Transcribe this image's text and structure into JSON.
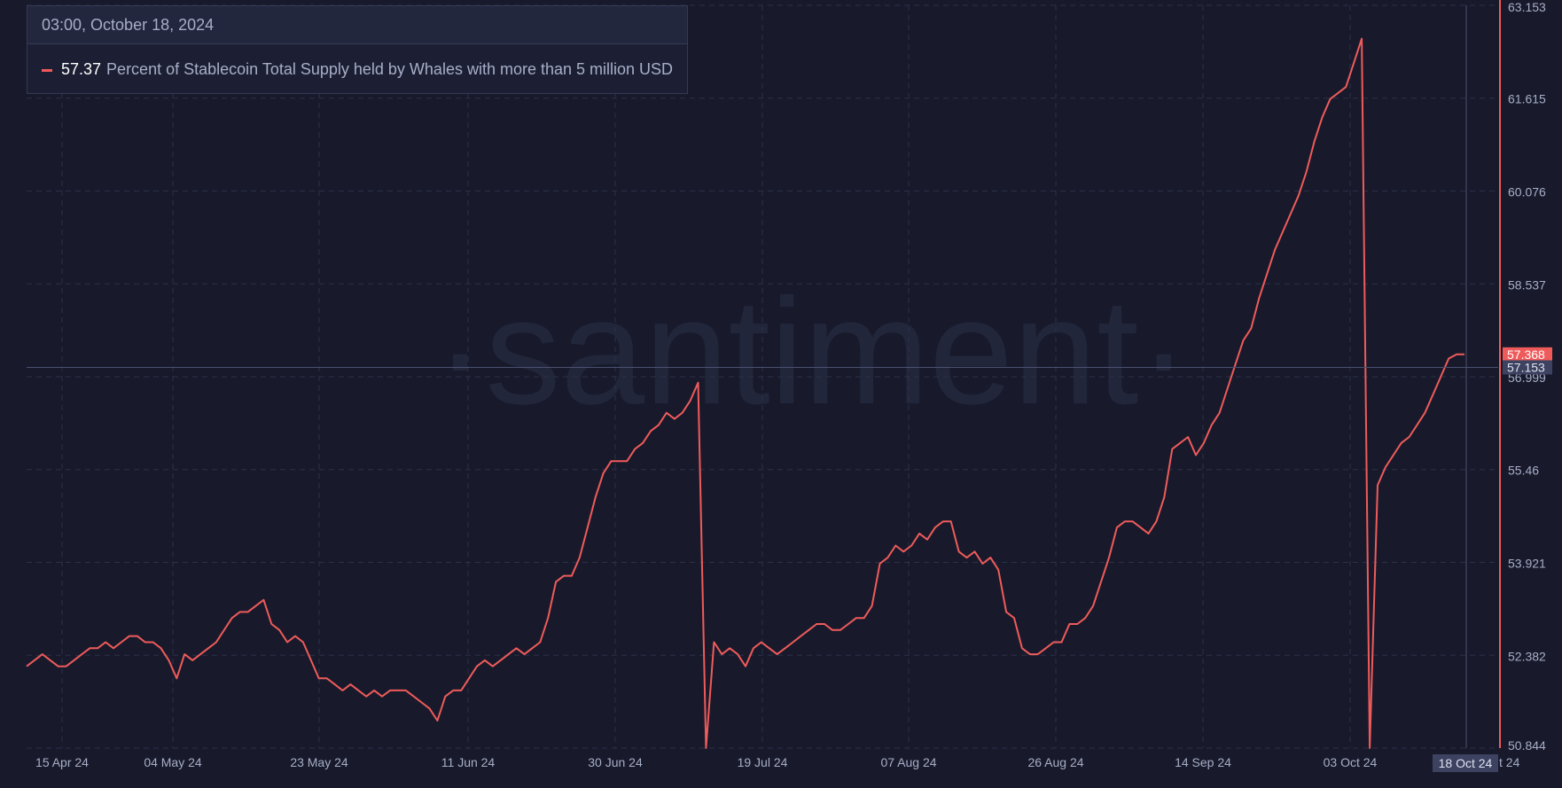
{
  "watermark": "·santiment·",
  "tooltip": {
    "date": "03:00, October 18, 2024",
    "value": "57.37",
    "label": "Percent of Stablecoin Total Supply held by Whales with more than 5 million USD"
  },
  "colors": {
    "background": "#181a2b",
    "line": "#ef5b5b",
    "grid": "#2b3048",
    "axis_text": "#a7aec8"
  },
  "y_axis": {
    "ticks": [
      "63.153",
      "61.615",
      "60.076",
      "58.537",
      "56.999",
      "55.46",
      "53.921",
      "52.382",
      "50.844"
    ],
    "current_value_badge": "57.368",
    "crosshair_value_badge": "57.153"
  },
  "x_axis": {
    "ticks": [
      "15 Apr 24",
      "04 May 24",
      "23 May 24",
      "11 Jun 24",
      "30 Jun 24",
      "19 Jul 24",
      "07 Aug 24",
      "26 Aug 24",
      "14 Sep 24",
      "03 Oct 24"
    ],
    "crosshair_date_badge": "18 Oct 24",
    "trailing_label": "t 24"
  },
  "chart_data": {
    "type": "line",
    "title": "",
    "xlabel": "",
    "ylabel": "",
    "ylim": [
      50.844,
      63.153
    ],
    "grid": true,
    "series": [
      {
        "name": "Percent of Stablecoin Total Supply held by Whales with more than 5 million USD",
        "values": [
          52.2,
          52.3,
          52.4,
          52.3,
          52.2,
          52.2,
          52.3,
          52.4,
          52.5,
          52.5,
          52.6,
          52.5,
          52.6,
          52.7,
          52.7,
          52.6,
          52.6,
          52.5,
          52.3,
          52.0,
          52.4,
          52.3,
          52.4,
          52.5,
          52.6,
          52.8,
          53.0,
          53.1,
          53.1,
          53.2,
          53.3,
          52.9,
          52.8,
          52.6,
          52.7,
          52.6,
          52.3,
          52.0,
          52.0,
          51.9,
          51.8,
          51.9,
          51.8,
          51.7,
          51.8,
          51.7,
          51.8,
          51.8,
          51.8,
          51.7,
          51.6,
          51.5,
          51.3,
          51.7,
          51.8,
          51.8,
          52.0,
          52.2,
          52.3,
          52.2,
          52.3,
          52.4,
          52.5,
          52.4,
          52.5,
          52.6,
          53.0,
          53.6,
          53.7,
          53.7,
          54.0,
          54.5,
          55.0,
          55.4,
          55.6,
          55.6,
          55.6,
          55.8,
          55.9,
          56.1,
          56.2,
          56.4,
          56.3,
          56.4,
          56.6,
          56.9,
          50.844,
          52.6,
          52.4,
          52.5,
          52.4,
          52.2,
          52.5,
          52.6,
          52.5,
          52.4,
          52.5,
          52.6,
          52.7,
          52.8,
          52.9,
          52.9,
          52.8,
          52.8,
          52.9,
          53.0,
          53.0,
          53.2,
          53.9,
          54.0,
          54.2,
          54.1,
          54.2,
          54.4,
          54.3,
          54.5,
          54.6,
          54.6,
          54.1,
          54.0,
          54.1,
          53.9,
          54.0,
          53.8,
          53.1,
          53.0,
          52.5,
          52.4,
          52.4,
          52.5,
          52.6,
          52.6,
          52.9,
          52.9,
          53.0,
          53.2,
          53.6,
          54.0,
          54.5,
          54.6,
          54.6,
          54.5,
          54.4,
          54.6,
          55.0,
          55.8,
          55.9,
          56.0,
          55.7,
          55.9,
          56.2,
          56.4,
          56.8,
          57.2,
          57.6,
          57.8,
          58.3,
          58.7,
          59.1,
          59.4,
          59.7,
          60.0,
          60.4,
          60.9,
          61.3,
          61.6,
          61.7,
          61.8,
          62.2,
          62.6,
          50.844,
          55.2,
          55.5,
          55.7,
          55.9,
          56.0,
          56.2,
          56.4,
          56.7,
          57.0,
          57.3,
          57.37,
          57.37
        ]
      }
    ]
  }
}
